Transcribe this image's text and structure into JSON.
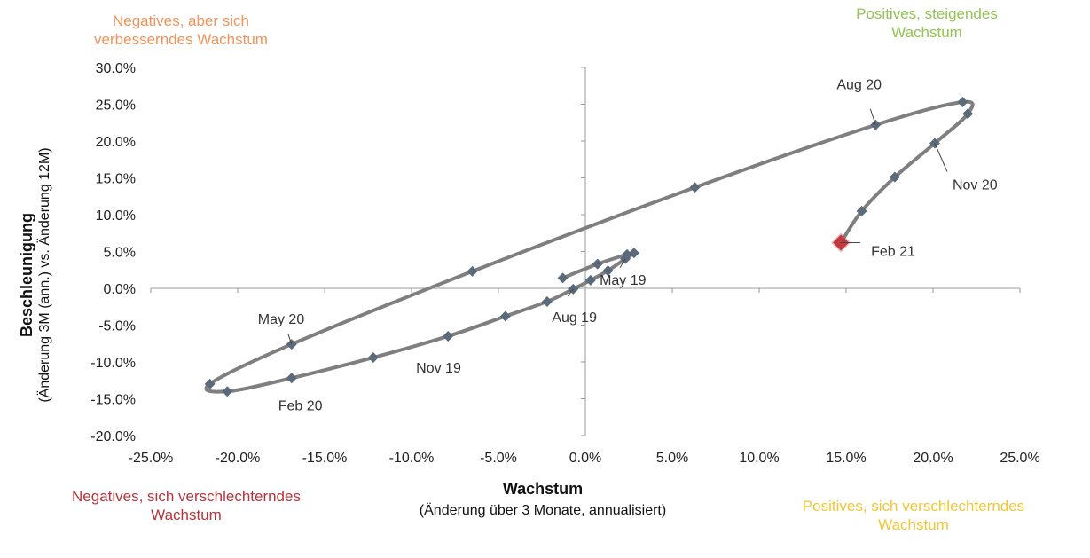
{
  "quadrants": {
    "top_left": "Negatives, aber sich verbesserndes Wachstum",
    "top_right": "Positives, steigendes Wachstum",
    "bottom_left": "Negatives, sich verschlechterndes Wachstum",
    "bottom_right": "Positives, sich verschlechterndes Wachstum"
  },
  "colors": {
    "top_left": "#f0945a",
    "top_right": "#92c353",
    "bottom_left": "#b8343a",
    "bottom_right": "#f2c733",
    "line": "#7f7f7f",
    "marker": "#5b6a7a",
    "highlight": "#c1393e"
  },
  "chart_data": {
    "type": "scatter",
    "xlabel": "Wachstum",
    "xlabel_sub": "(Änderung über 3 Monate, annualisiert)",
    "ylabel": "Beschleunigung",
    "ylabel_sub": "(Änderung 3M (ann.) vs. Änderung 12M)",
    "xlim": [
      -25,
      25
    ],
    "ylim": [
      -20,
      30
    ],
    "x_ticks": [
      "-25.0%",
      "-20.0%",
      "-15.0%",
      "-10.0%",
      "-5.0%",
      "0.0%",
      "5.0%",
      "10.0%",
      "15.0%",
      "20.0%",
      "25.0%"
    ],
    "y_ticks": [
      "30.0%",
      "25.0%",
      "20.0%",
      "15.0%",
      "10.0%",
      "5.0%",
      "0.0%",
      "-5.0%",
      "-10.0%",
      "-15.0%",
      "-20.0%"
    ],
    "series": [
      {
        "points": [
          {
            "x": -1.3,
            "y": 1.4
          },
          {
            "x": 0.7,
            "y": 3.3
          },
          {
            "x": 2.4,
            "y": 4.6
          },
          {
            "x": 2.8,
            "y": 4.8
          },
          {
            "x": 2.3,
            "y": 4.0
          },
          {
            "x": 1.3,
            "y": 2.4
          },
          {
            "x": 0.3,
            "y": 1.1
          },
          {
            "x": -0.7,
            "y": -0.1
          },
          {
            "x": -2.2,
            "y": -1.8
          },
          {
            "x": -4.6,
            "y": -3.8
          },
          {
            "x": -7.9,
            "y": -6.5
          },
          {
            "x": -12.2,
            "y": -9.4
          },
          {
            "x": -16.9,
            "y": -12.2
          },
          {
            "x": -20.6,
            "y": -14.0
          },
          {
            "x": -21.6,
            "y": -13.0
          },
          {
            "x": -16.9,
            "y": -7.6
          },
          {
            "x": -6.5,
            "y": 2.3
          },
          {
            "x": 6.3,
            "y": 13.7
          },
          {
            "x": 16.7,
            "y": 22.2
          },
          {
            "x": 21.7,
            "y": 25.3
          },
          {
            "x": 22.0,
            "y": 23.7
          },
          {
            "x": 20.1,
            "y": 19.7
          },
          {
            "x": 17.8,
            "y": 15.1
          },
          {
            "x": 15.9,
            "y": 10.5
          },
          {
            "x": 14.7,
            "y": 6.2
          }
        ]
      }
    ],
    "annotations": [
      {
        "text": "May 19",
        "point": 4
      },
      {
        "text": "Aug 19",
        "point": 7
      },
      {
        "text": "Nov 19",
        "point": 10
      },
      {
        "text": "Feb 20",
        "point": 12
      },
      {
        "text": "May 20",
        "point": 15
      },
      {
        "text": "Aug 20",
        "point": 18
      },
      {
        "text": "Nov 20",
        "point": 21
      },
      {
        "text": "Feb 21",
        "point": 24
      }
    ],
    "highlight_point": 24,
    "grid": false
  }
}
